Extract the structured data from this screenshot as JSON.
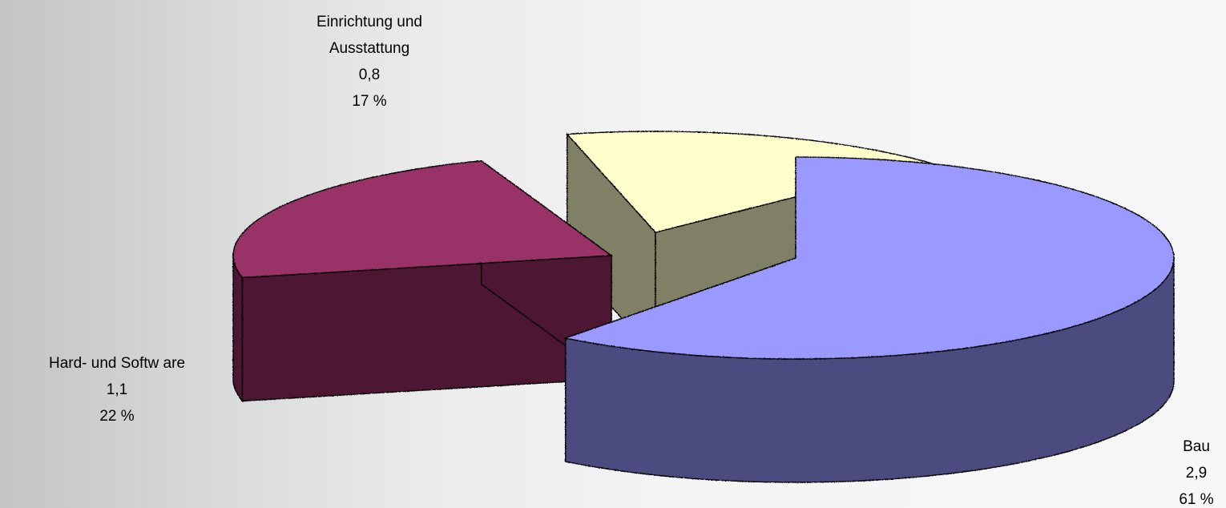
{
  "chart_data": {
    "type": "pie",
    "variant": "3d-exploded",
    "title": "",
    "slices": [
      {
        "label_lines": [
          "Bau"
        ],
        "value_text": "2,9",
        "percent_text": "61 %",
        "value": 2.9,
        "percent": 61,
        "color": "#9999ff",
        "side_color": "#4b4b7f"
      },
      {
        "label_lines": [
          "Hard- und Softw are"
        ],
        "value_text": "1,1",
        "percent_text": "22 %",
        "value": 1.1,
        "percent": 22,
        "color": "#993366",
        "side_color": "#4d1932"
      },
      {
        "label_lines": [
          "Einrichtung und",
          "Ausstattung"
        ],
        "value_text": "0,8",
        "percent_text": "17 %",
        "value": 0.8,
        "percent": 17,
        "color": "#ffffcc",
        "side_color": "#808066"
      }
    ],
    "legend": "none"
  }
}
